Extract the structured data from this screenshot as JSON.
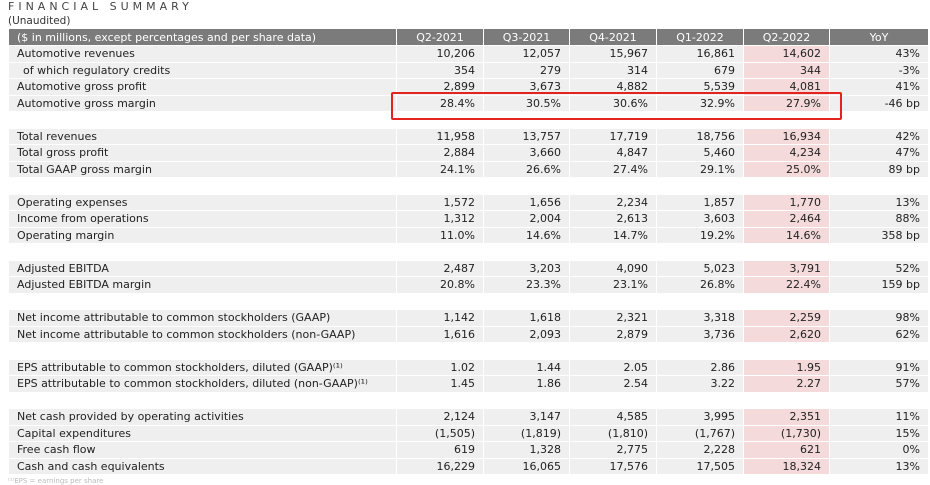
{
  "title": "FINANCIAL SUMMARY",
  "subtitle": "(Unaudited)",
  "header": [
    "($ in millions, except percentages and per share data)",
    "Q2-2021",
    "Q3-2021",
    "Q4-2021",
    "Q1-2022",
    "Q2-2022",
    "YoY"
  ],
  "groups": [
    [
      [
        "Automotive revenues",
        "10,206",
        "12,057",
        "15,967",
        "16,861",
        "14,602",
        "43%"
      ],
      [
        "of which regulatory credits",
        "354",
        "279",
        "314",
        "679",
        "344",
        "-3%"
      ],
      [
        "Automotive gross profit",
        "2,899",
        "3,673",
        "4,882",
        "5,539",
        "4,081",
        "41%"
      ],
      [
        "Automotive gross margin",
        "28.4%",
        "30.5%",
        "30.6%",
        "32.9%",
        "27.9%",
        "-46 bp"
      ]
    ],
    [
      [
        "Total revenues",
        "11,958",
        "13,757",
        "17,719",
        "18,756",
        "16,934",
        "42%"
      ],
      [
        "Total gross profit",
        "2,884",
        "3,660",
        "4,847",
        "5,460",
        "4,234",
        "47%"
      ],
      [
        "Total GAAP gross margin",
        "24.1%",
        "26.6%",
        "27.4%",
        "29.1%",
        "25.0%",
        "89 bp"
      ]
    ],
    [
      [
        "Operating expenses",
        "1,572",
        "1,656",
        "2,234",
        "1,857",
        "1,770",
        "13%"
      ],
      [
        "Income from operations",
        "1,312",
        "2,004",
        "2,613",
        "3,603",
        "2,464",
        "88%"
      ],
      [
        "Operating margin",
        "11.0%",
        "14.6%",
        "14.7%",
        "19.2%",
        "14.6%",
        "358 bp"
      ]
    ],
    [
      [
        "Adjusted EBITDA",
        "2,487",
        "3,203",
        "4,090",
        "5,023",
        "3,791",
        "52%"
      ],
      [
        "Adjusted EBITDA margin",
        "20.8%",
        "23.3%",
        "23.1%",
        "26.8%",
        "22.4%",
        "159 bp"
      ]
    ],
    [
      [
        "Net income attributable to common stockholders (GAAP)",
        "1,142",
        "1,618",
        "2,321",
        "3,318",
        "2,259",
        "98%"
      ],
      [
        "Net income attributable to common stockholders (non-GAAP)",
        "1,616",
        "2,093",
        "2,879",
        "3,736",
        "2,620",
        "62%"
      ]
    ],
    [
      [
        "EPS attributable to common stockholders, diluted (GAAP)⁽¹⁾",
        "1.02",
        "1.44",
        "2.05",
        "2.86",
        "1.95",
        "91%"
      ],
      [
        "EPS attributable to common stockholders, diluted (non-GAAP)⁽¹⁾",
        "1.45",
        "1.86",
        "2.54",
        "3.22",
        "2.27",
        "57%"
      ]
    ],
    [
      [
        "Net cash provided by operating activities",
        "2,124",
        "3,147",
        "4,585",
        "3,995",
        "2,351",
        "11%"
      ],
      [
        "Capital expenditures",
        "(1,505)",
        "(1,819)",
        "(1,810)",
        "(1,767)",
        "(1,730)",
        "15%"
      ],
      [
        "Free cash flow",
        "619",
        "1,328",
        "2,775",
        "2,228",
        "621",
        "0%"
      ],
      [
        "Cash and cash equivalents",
        "16,229",
        "16,065",
        "17,576",
        "17,505",
        "18,324",
        "13%"
      ]
    ]
  ],
  "footnote": "⁽¹⁾EPS = earnings per share",
  "colors": {
    "header_bg": "#7b7b7b",
    "row_bg": "#efefef",
    "highlight_col": "#f4dada",
    "annotation_box": "#e3231f"
  }
}
